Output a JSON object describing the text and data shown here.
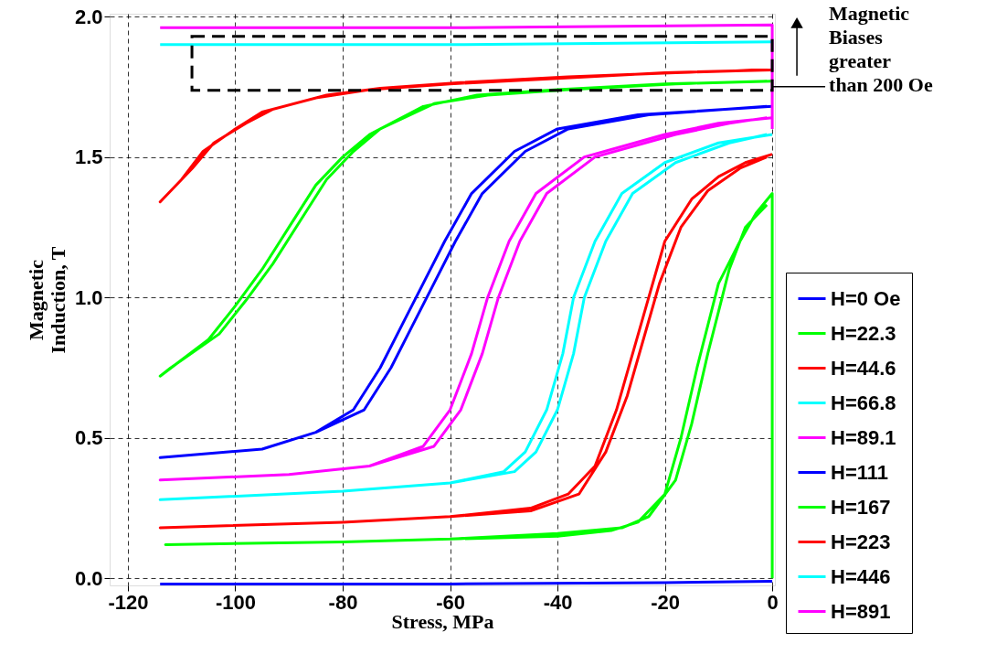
{
  "chart_data": {
    "type": "line",
    "xlabel": "Stress, MPa",
    "ylabel": "Magnetic\nInduction, T",
    "xlim": [
      -123.4,
      0.5
    ],
    "ylim": [
      -0.025,
      2.01
    ],
    "xticks": [
      -120,
      -100,
      -80,
      -60,
      -40,
      -20,
      0
    ],
    "yticks": [
      {
        "value": 0,
        "label": "0.0"
      },
      0.5,
      {
        "value": 1,
        "label": "1.0"
      },
      1.5,
      {
        "value": 2,
        "label": "2.0"
      }
    ],
    "grid": true,
    "legend": "right",
    "line_style": "solid",
    "marker": "none",
    "annotations": [
      {
        "text": "Magnetic\nBiases\ngreater\nthan 200 Oe",
        "x": 0,
        "y": 1.75
      }
    ],
    "series": [
      {
        "name": "H=0 Oe",
        "color": "#0000ff",
        "x": [
          -114,
          -60,
          -20,
          0
        ],
        "values": [
          -0.02,
          -0.02,
          -0.015,
          -0.01
        ]
      },
      {
        "name": "H=22.3",
        "color": "#00ff00",
        "x": [
          0,
          0,
          -3,
          -6,
          -10,
          -12,
          -14,
          -17,
          -20,
          -25,
          -30,
          -40,
          -60,
          -80,
          -113,
          -80,
          -60,
          -40,
          -28,
          -23,
          -18,
          -15,
          -12,
          -10,
          -8,
          -5,
          -1
        ],
        "values": [
          0.0,
          1.37,
          1.3,
          1.2,
          1.05,
          0.9,
          0.75,
          0.5,
          0.3,
          0.2,
          0.17,
          0.15,
          0.14,
          0.13,
          0.12,
          0.13,
          0.14,
          0.16,
          0.18,
          0.22,
          0.35,
          0.55,
          0.8,
          0.95,
          1.1,
          1.25,
          1.33
        ]
      },
      {
        "name": "H=44.6",
        "color": "#ff0000",
        "x": [
          0,
          -5,
          -10,
          -15,
          -20,
          -23,
          -26,
          -29,
          -33,
          -38,
          -45,
          -60,
          -80,
          -114,
          -80,
          -60,
          -45,
          -36,
          -31,
          -27,
          -24,
          -21,
          -17,
          -12,
          -6,
          -1
        ],
        "values": [
          1.51,
          1.48,
          1.43,
          1.35,
          1.2,
          1.0,
          0.8,
          0.6,
          0.4,
          0.3,
          0.25,
          0.22,
          0.2,
          0.18,
          0.2,
          0.22,
          0.24,
          0.3,
          0.45,
          0.65,
          0.85,
          1.05,
          1.25,
          1.38,
          1.46,
          1.5
        ]
      },
      {
        "name": "H=66.8",
        "color": "#00ffff",
        "x": [
          0,
          -10,
          -20,
          -28,
          -33,
          -37,
          -39,
          -42,
          -46,
          -50,
          -60,
          -80,
          -114,
          -80,
          -60,
          -48,
          -44,
          -40,
          -37,
          -35,
          -31,
          -26,
          -18,
          -8,
          -1
        ],
        "values": [
          1.58,
          1.55,
          1.48,
          1.37,
          1.2,
          1.0,
          0.8,
          0.6,
          0.45,
          0.38,
          0.34,
          0.31,
          0.28,
          0.31,
          0.34,
          0.38,
          0.45,
          0.6,
          0.8,
          1.0,
          1.2,
          1.37,
          1.48,
          1.55,
          1.58
        ]
      },
      {
        "name": "H=89.1",
        "color": "#ff00ff",
        "x": [
          0,
          -10,
          -20,
          -35,
          -44,
          -49,
          -53,
          -56,
          -60,
          -65,
          -75,
          -90,
          -114,
          -90,
          -75,
          -63,
          -58,
          -54,
          -51,
          -47,
          -42,
          -33,
          -18,
          -8,
          -1
        ],
        "values": [
          1.64,
          1.62,
          1.58,
          1.5,
          1.37,
          1.2,
          1.0,
          0.8,
          0.6,
          0.47,
          0.4,
          0.37,
          0.35,
          0.37,
          0.4,
          0.47,
          0.6,
          0.8,
          1.0,
          1.2,
          1.37,
          1.5,
          1.58,
          1.62,
          1.64
        ]
      },
      {
        "name": "H=111",
        "color": "#0000ff",
        "x": [
          0,
          -25,
          -40,
          -48,
          -56,
          -61,
          -65,
          -69,
          -73,
          -78,
          -85,
          -95,
          -114,
          -95,
          -85,
          -76,
          -71,
          -67,
          -63,
          -59,
          -54,
          -46,
          -38,
          -23,
          -1
        ],
        "values": [
          1.68,
          1.65,
          1.6,
          1.52,
          1.37,
          1.2,
          1.05,
          0.9,
          0.75,
          0.6,
          0.52,
          0.46,
          0.43,
          0.46,
          0.52,
          0.6,
          0.75,
          0.9,
          1.05,
          1.2,
          1.37,
          1.52,
          1.6,
          1.65,
          1.68
        ]
      },
      {
        "name": "H=167",
        "color": "#00ff00",
        "x": [
          0,
          -20,
          -40,
          -55,
          -65,
          -75,
          -80,
          -85,
          -90,
          -95,
          -100,
          -105,
          -114,
          -112,
          -103,
          -98,
          -93,
          -88,
          -83,
          -78,
          -73,
          -63,
          -53,
          -38,
          -18,
          -1
        ],
        "values": [
          1.77,
          1.76,
          1.74,
          1.72,
          1.68,
          1.58,
          1.5,
          1.4,
          1.25,
          1.1,
          0.97,
          0.85,
          0.72,
          0.75,
          0.87,
          0.99,
          1.12,
          1.27,
          1.42,
          1.52,
          1.6,
          1.69,
          1.72,
          1.74,
          1.76,
          1.77
        ]
      },
      {
        "name": "H=223",
        "color": "#ff0000",
        "x": [
          0,
          -20,
          -40,
          -60,
          -75,
          -85,
          -95,
          -100,
          -106,
          -110,
          -114,
          -112,
          -108,
          -104,
          -98,
          -93,
          -83,
          -73,
          -58,
          -38,
          -18,
          -1
        ],
        "values": [
          1.81,
          1.8,
          1.78,
          1.76,
          1.74,
          1.71,
          1.66,
          1.6,
          1.52,
          1.42,
          1.34,
          1.38,
          1.46,
          1.55,
          1.62,
          1.67,
          1.72,
          1.745,
          1.765,
          1.785,
          1.8,
          1.81
        ]
      },
      {
        "name": "H=446",
        "color": "#00ffff",
        "x": [
          -114,
          -60,
          0
        ],
        "values": [
          1.9,
          1.9,
          1.91
        ]
      },
      {
        "name": "H=891",
        "color": "#ff00ff",
        "x": [
          0,
          0,
          -60,
          -114
        ],
        "values": [
          1.6,
          1.97,
          1.96,
          1.96
        ]
      }
    ]
  }
}
